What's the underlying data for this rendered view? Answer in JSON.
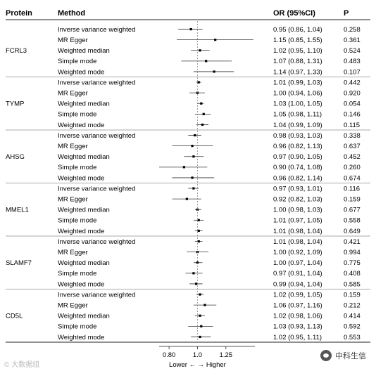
{
  "header": {
    "protein": "Protein",
    "method": "Method",
    "or": "OR (95%CI)",
    "p": "P"
  },
  "chart_data": {
    "type": "forest",
    "x_scale": "log",
    "xlim": [
      0.74,
      1.57
    ],
    "ticks": [
      0.8,
      1.0,
      1.25
    ],
    "tick_labels": [
      "0.80",
      "1.0",
      "1.25"
    ],
    "reference_line": 1.0,
    "xlabel": "Lower ← → Higher",
    "groups": [
      {
        "protein": "FCRL3",
        "rows": [
          {
            "method": "Inverse variance weighted",
            "or": 0.95,
            "lo": 0.86,
            "hi": 1.04,
            "text": "0.95 (0.86, 1.04)",
            "p": "0.258"
          },
          {
            "method": "MR Egger",
            "or": 1.15,
            "lo": 0.85,
            "hi": 1.55,
            "text": "1.15 (0.85, 1.55)",
            "p": "0.361"
          },
          {
            "method": "Weighted median",
            "or": 1.02,
            "lo": 0.95,
            "hi": 1.1,
            "text": "1.02 (0.95, 1.10)",
            "p": "0.524"
          },
          {
            "method": "Simple mode",
            "or": 1.07,
            "lo": 0.88,
            "hi": 1.31,
            "text": "1.07 (0.88, 1.31)",
            "p": "0.483"
          },
          {
            "method": "Weighted mode",
            "or": 1.14,
            "lo": 0.97,
            "hi": 1.33,
            "text": "1.14 (0.97, 1.33)",
            "p": "0.107"
          }
        ]
      },
      {
        "protein": "TYMP",
        "rows": [
          {
            "method": "Inverse variance weighted",
            "or": 1.01,
            "lo": 0.99,
            "hi": 1.03,
            "text": "1.01 (0.99, 1.03)",
            "p": "0.442"
          },
          {
            "method": "MR Egger",
            "or": 1.0,
            "lo": 0.94,
            "hi": 1.06,
            "text": "1.00 (0.94, 1.06)",
            "p": "0.920"
          },
          {
            "method": "Weighted median",
            "or": 1.03,
            "lo": 1.0,
            "hi": 1.05,
            "text": "1.03 (1.00, 1.05)",
            "p": "0.054"
          },
          {
            "method": "Simple mode",
            "or": 1.05,
            "lo": 0.98,
            "hi": 1.11,
            "text": "1.05 (0.98, 1.11)",
            "p": "0.146"
          },
          {
            "method": "Weighted mode",
            "or": 1.04,
            "lo": 0.99,
            "hi": 1.09,
            "text": "1.04 (0.99, 1.09)",
            "p": "0.115"
          }
        ]
      },
      {
        "protein": "AHSG",
        "rows": [
          {
            "method": "Inverse variance weighted",
            "or": 0.98,
            "lo": 0.93,
            "hi": 1.03,
            "text": "0.98 (0.93, 1.03)",
            "p": "0.338"
          },
          {
            "method": "MR Egger",
            "or": 0.96,
            "lo": 0.82,
            "hi": 1.13,
            "text": "0.96 (0.82, 1.13)",
            "p": "0.637"
          },
          {
            "method": "Weighted median",
            "or": 0.97,
            "lo": 0.9,
            "hi": 1.05,
            "text": "0.97 (0.90, 1.05)",
            "p": "0.452"
          },
          {
            "method": "Simple mode",
            "or": 0.9,
            "lo": 0.74,
            "hi": 1.08,
            "text": "0.90 (0.74, 1.08)",
            "p": "0.260"
          },
          {
            "method": "Weighted mode",
            "or": 0.96,
            "lo": 0.82,
            "hi": 1.14,
            "text": "0.96 (0.82, 1.14)",
            "p": "0.674"
          }
        ]
      },
      {
        "protein": "MMEL1",
        "rows": [
          {
            "method": "Inverse variance weighted",
            "or": 0.97,
            "lo": 0.93,
            "hi": 1.01,
            "text": "0.97 (0.93, 1.01)",
            "p": "0.116"
          },
          {
            "method": "MR Egger",
            "or": 0.92,
            "lo": 0.82,
            "hi": 1.03,
            "text": "0.92 (0.82, 1.03)",
            "p": "0.159"
          },
          {
            "method": "Weighted median",
            "or": 1.0,
            "lo": 0.98,
            "hi": 1.03,
            "text": "1.00 (0.98, 1.03)",
            "p": "0.677"
          },
          {
            "method": "Simple mode",
            "or": 1.01,
            "lo": 0.97,
            "hi": 1.05,
            "text": "1.01 (0.97, 1.05)",
            "p": "0.558"
          },
          {
            "method": "Weighted mode",
            "or": 1.01,
            "lo": 0.98,
            "hi": 1.04,
            "text": "1.01 (0.98, 1.04)",
            "p": "0.649"
          }
        ]
      },
      {
        "protein": "SLAMF7",
        "rows": [
          {
            "method": "Inverse variance weighted",
            "or": 1.01,
            "lo": 0.98,
            "hi": 1.04,
            "text": "1.01 (0.98, 1.04)",
            "p": "0.421"
          },
          {
            "method": "MR Egger",
            "or": 1.0,
            "lo": 0.92,
            "hi": 1.09,
            "text": "1.00 (0.92, 1.09)",
            "p": "0.994"
          },
          {
            "method": "Weighted median",
            "or": 1.0,
            "lo": 0.97,
            "hi": 1.04,
            "text": "1.00 (0.97, 1.04)",
            "p": "0.775"
          },
          {
            "method": "Simple mode",
            "or": 0.97,
            "lo": 0.91,
            "hi": 1.04,
            "text": "0.97 (0.91, 1.04)",
            "p": "0.408"
          },
          {
            "method": "Weighted mode",
            "or": 0.99,
            "lo": 0.94,
            "hi": 1.04,
            "text": "0.99 (0.94, 1.04)",
            "p": "0.585"
          }
        ]
      },
      {
        "protein": "CD5L",
        "rows": [
          {
            "method": "Inverse variance weighted",
            "or": 1.02,
            "lo": 0.99,
            "hi": 1.05,
            "text": "1.02 (0.99, 1.05)",
            "p": "0.159"
          },
          {
            "method": "MR Egger",
            "or": 1.06,
            "lo": 0.97,
            "hi": 1.16,
            "text": "1.06 (0.97, 1.16)",
            "p": "0.212"
          },
          {
            "method": "Weighted median",
            "or": 1.02,
            "lo": 0.98,
            "hi": 1.06,
            "text": "1.02 (0.98, 1.06)",
            "p": "0.414"
          },
          {
            "method": "Simple mode",
            "or": 1.03,
            "lo": 0.93,
            "hi": 1.13,
            "text": "1.03 (0.93, 1.13)",
            "p": "0.592"
          },
          {
            "method": "Weighted mode",
            "or": 1.02,
            "lo": 0.95,
            "hi": 1.11,
            "text": "1.02 (0.95, 1.11)",
            "p": "0.553"
          }
        ]
      }
    ]
  },
  "watermarks": {
    "left": "© 大数据组",
    "right": "中科生信"
  }
}
